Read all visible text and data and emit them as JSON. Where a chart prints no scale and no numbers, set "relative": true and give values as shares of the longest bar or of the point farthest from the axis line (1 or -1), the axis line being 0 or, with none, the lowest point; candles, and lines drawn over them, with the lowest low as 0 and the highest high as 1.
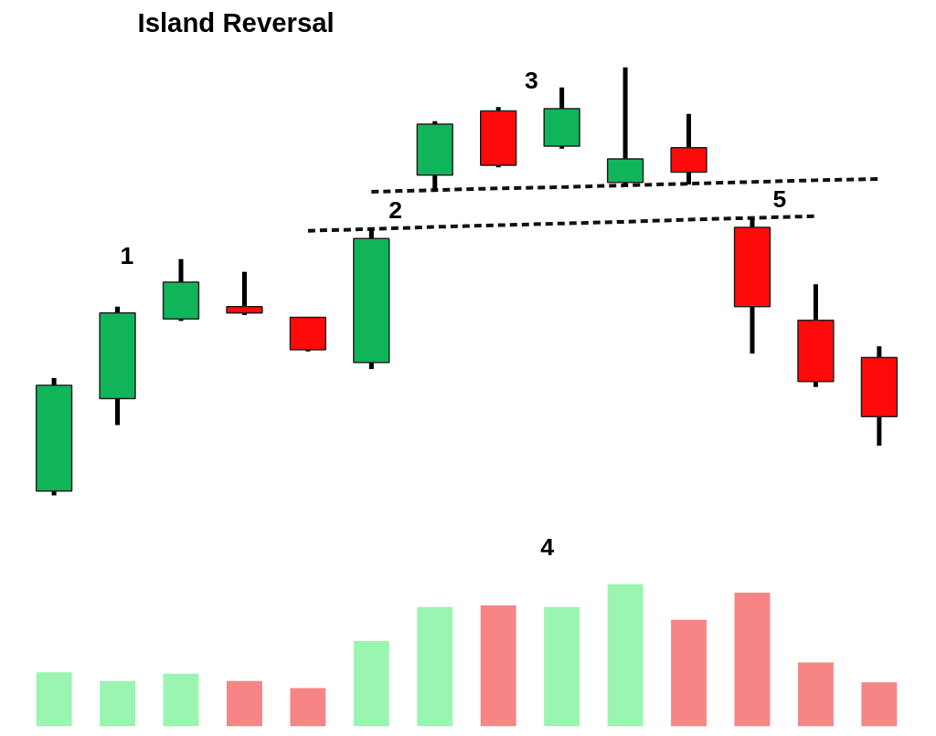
{
  "chart_data": [
    {
      "type": "candlestick",
      "title": "Island Reversal",
      "relative": true,
      "categories": [
        null,
        null,
        null,
        null,
        null,
        null,
        null,
        null,
        null,
        null,
        null,
        null,
        null,
        null
      ],
      "ohlc": [
        [
          0.01,
          0.274,
          0,
          0.257
        ],
        [
          0.226,
          0.441,
          0.164,
          0.426
        ],
        [
          0.412,
          0.552,
          0.407,
          0.498
        ],
        [
          0.441,
          0.522,
          0.421,
          0.426
        ],
        [
          0.416,
          0.416,
          0.336,
          0.34
        ],
        [
          0.31,
          0.626,
          0.295,
          0.6
        ],
        [
          0.748,
          0.874,
          0.712,
          0.867
        ],
        [
          0.898,
          0.907,
          0.766,
          0.771
        ],
        [
          0.816,
          0.953,
          0.81,
          0.903
        ],
        [
          0.731,
          1,
          0.722,
          0.786
        ],
        [
          0.812,
          0.891,
          0.726,
          0.755
        ],
        [
          0.626,
          0.647,
          0.331,
          0.441
        ],
        [
          0.409,
          0.493,
          0.253,
          0.266
        ],
        [
          0.322,
          0.348,
          0.116,
          0.184
        ]
      ],
      "colors": [
        "#10b55a",
        "#10b55a",
        "#10b55a",
        "#fe0a0a",
        "#fe0a0a",
        "#10b55a",
        "#10b55a",
        "#fe0a0a",
        "#10b55a",
        "#10b55a",
        "#fe0a0a",
        "#fe0a0a",
        "#fe0a0a",
        "#fe0a0a"
      ],
      "series": [
        {
          "type": "line",
          "color": "#111111",
          "line_style": "dashed",
          "values": [
            null,
            null,
            null,
            null,
            null,
            0.709,
            0.713,
            0.717,
            0.72,
            0.724,
            0.728,
            0.732,
            0.736,
            0.739
          ]
        },
        {
          "type": "line",
          "color": "#111111",
          "line_style": "dashed",
          "values": [
            null,
            null,
            null,
            null,
            0.618,
            0.622,
            0.627,
            0.631,
            0.635,
            0.639,
            0.644,
            0.648,
            0.652,
            null
          ]
        }
      ],
      "annotations": [
        "1",
        "2",
        "3",
        "5"
      ]
    },
    {
      "type": "bar",
      "relative": true,
      "categories": [
        null,
        null,
        null,
        null,
        null,
        null,
        null,
        null,
        null,
        null,
        null,
        null,
        null,
        null
      ],
      "values": [
        0.38,
        0.32,
        0.37,
        0.32,
        0.27,
        0.6,
        0.84,
        0.85,
        0.84,
        1,
        0.75,
        0.94,
        0.45,
        0.31
      ],
      "colors": [
        "#9af5b0",
        "#9af5b0",
        "#9af5b0",
        "#f78585",
        "#f78585",
        "#9af5b0",
        "#9af5b0",
        "#f78585",
        "#9af5b0",
        "#9af5b0",
        "#f78585",
        "#f78585",
        "#f78585",
        "#f78585"
      ],
      "annotations": [
        "4"
      ]
    }
  ]
}
